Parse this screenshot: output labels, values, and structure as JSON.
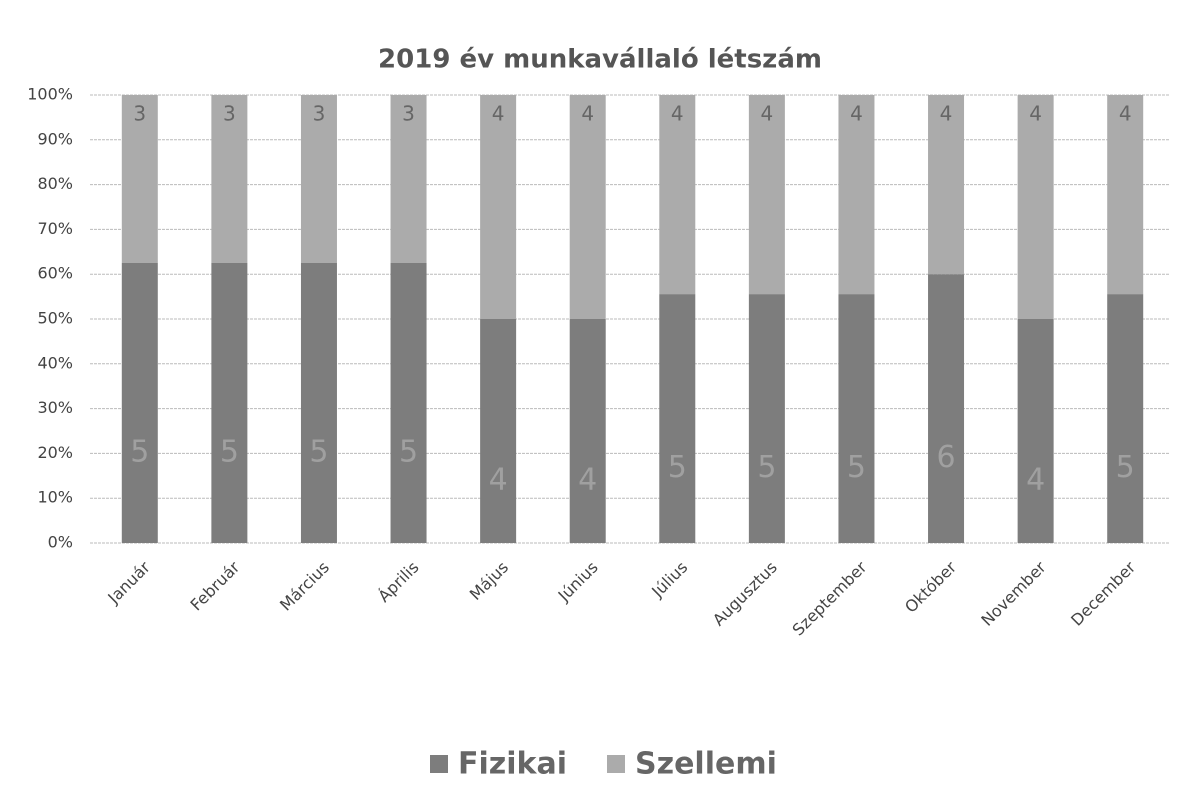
{
  "chart_data": {
    "type": "bar",
    "stacking": "percent",
    "title": "2019 év munkavállaló létszám",
    "categories": [
      "Január",
      "Február",
      "Március",
      "Április",
      "Május",
      "Június",
      "Július",
      "Augusztus",
      "Szeptember",
      "Október",
      "November",
      "December"
    ],
    "series": [
      {
        "name": "Fizikai",
        "color": "#7d7d7d",
        "values": [
          5,
          5,
          5,
          5,
          4,
          4,
          5,
          5,
          5,
          6,
          4,
          5
        ]
      },
      {
        "name": "Szellemi",
        "color": "#ababab",
        "values": [
          3,
          3,
          3,
          3,
          4,
          4,
          4,
          4,
          4,
          4,
          4,
          4
        ]
      }
    ],
    "ylim": [
      0,
      100
    ],
    "yticks": [
      {
        "value": 0,
        "label": "0%"
      },
      {
        "value": 10,
        "label": "10%"
      },
      {
        "value": 20,
        "label": "20%"
      },
      {
        "value": 30,
        "label": "30%"
      },
      {
        "value": 40,
        "label": "40%"
      },
      {
        "value": 50,
        "label": "50%"
      },
      {
        "value": 60,
        "label": "60%"
      },
      {
        "value": 70,
        "label": "70%"
      },
      {
        "value": 80,
        "label": "80%"
      },
      {
        "value": 90,
        "label": "90%"
      },
      {
        "value": 100,
        "label": "100%"
      }
    ],
    "grid": true,
    "legend": "bottom"
  }
}
